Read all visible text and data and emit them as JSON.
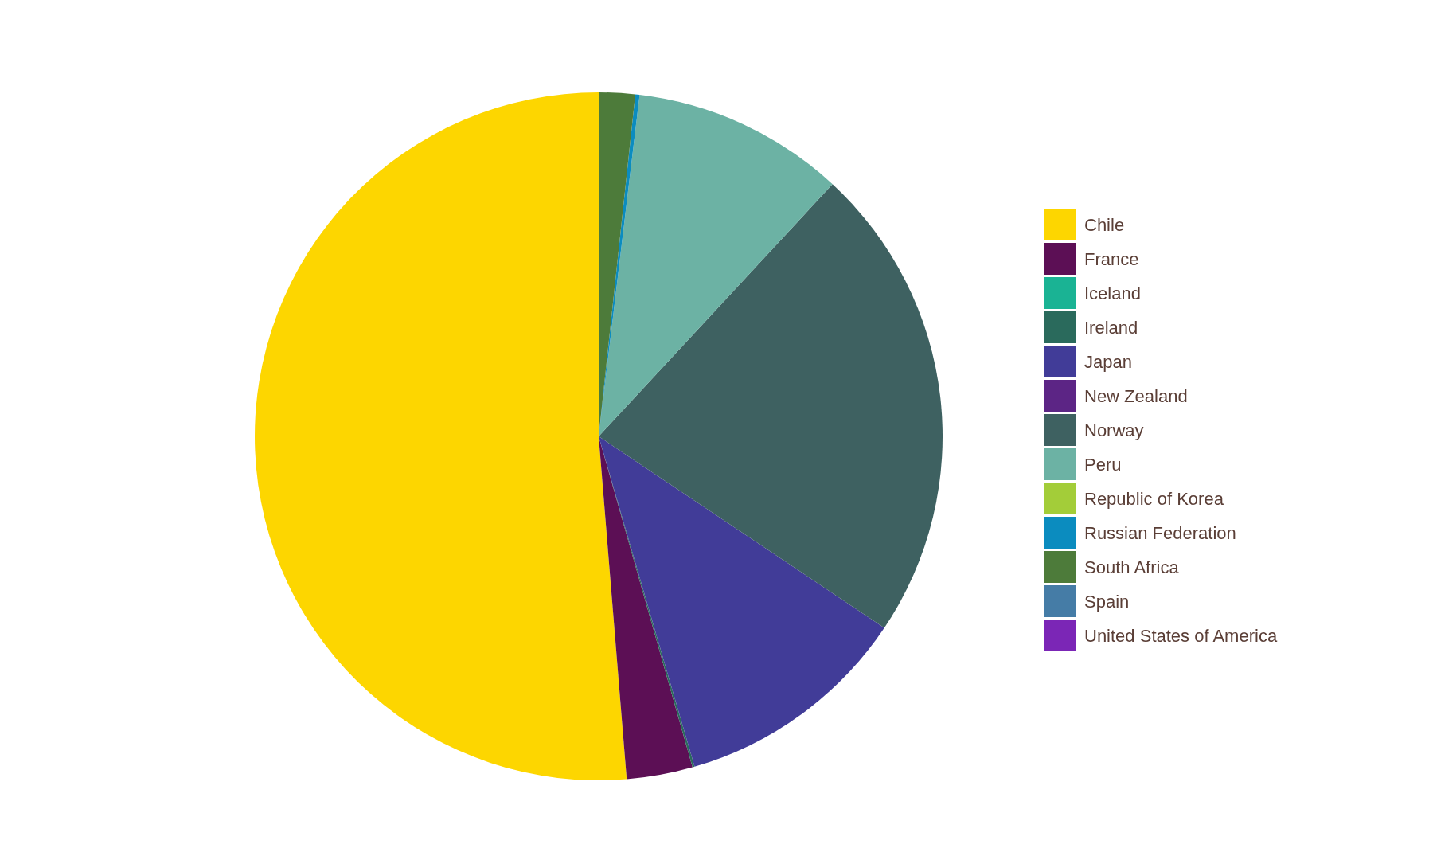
{
  "chart_data": {
    "type": "pie",
    "categories": [
      "Chile",
      "France",
      "Iceland",
      "Ireland",
      "Japan",
      "New Zealand",
      "Norway",
      "Peru",
      "Republic of Korea",
      "Russian Federation",
      "South Africa",
      "Spain",
      "United States of America"
    ],
    "values": [
      51.3,
      3.1,
      0,
      0.1,
      11.1,
      0,
      22.5,
      10.0,
      0,
      0.2,
      1.7,
      0,
      0
    ],
    "colors": [
      "#fdd600",
      "#5c0f55",
      "#1ab394",
      "#2a6a5c",
      "#413c98",
      "#5c2585",
      "#3e6161",
      "#6cb2a4",
      "#a3cd39",
      "#0b8cbf",
      "#4d7b3a",
      "#457ca6",
      "#7b26b6"
    ],
    "legend": "right"
  }
}
